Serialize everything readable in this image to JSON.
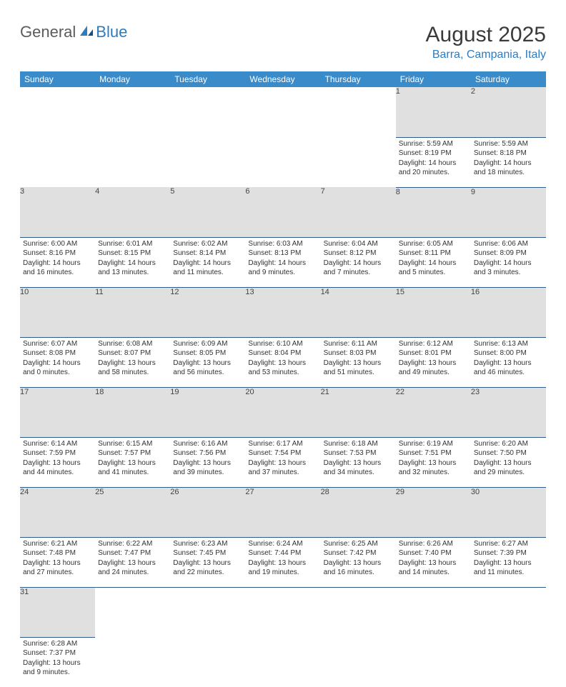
{
  "logo": {
    "general": "General",
    "blue": "Blue"
  },
  "title": "August 2025",
  "location": "Barra, Campania, Italy",
  "days": [
    "Sunday",
    "Monday",
    "Tuesday",
    "Wednesday",
    "Thursday",
    "Friday",
    "Saturday"
  ],
  "colors": {
    "header_bg": "#3a8bc9",
    "header_text": "#ffffff",
    "daynum_bg": "#e0e0e0",
    "accent": "#2f7bbf",
    "week_border": "#2f5b8a"
  },
  "weeks": [
    {
      "cells": [
        null,
        null,
        null,
        null,
        null,
        {
          "n": "1",
          "sr": "5:59 AM",
          "ss": "8:19 PM",
          "dl": "14 hours and 20 minutes."
        },
        {
          "n": "2",
          "sr": "5:59 AM",
          "ss": "8:18 PM",
          "dl": "14 hours and 18 minutes."
        }
      ]
    },
    {
      "cells": [
        {
          "n": "3",
          "sr": "6:00 AM",
          "ss": "8:16 PM",
          "dl": "14 hours and 16 minutes."
        },
        {
          "n": "4",
          "sr": "6:01 AM",
          "ss": "8:15 PM",
          "dl": "14 hours and 13 minutes."
        },
        {
          "n": "5",
          "sr": "6:02 AM",
          "ss": "8:14 PM",
          "dl": "14 hours and 11 minutes."
        },
        {
          "n": "6",
          "sr": "6:03 AM",
          "ss": "8:13 PM",
          "dl": "14 hours and 9 minutes."
        },
        {
          "n": "7",
          "sr": "6:04 AM",
          "ss": "8:12 PM",
          "dl": "14 hours and 7 minutes."
        },
        {
          "n": "8",
          "sr": "6:05 AM",
          "ss": "8:11 PM",
          "dl": "14 hours and 5 minutes."
        },
        {
          "n": "9",
          "sr": "6:06 AM",
          "ss": "8:09 PM",
          "dl": "14 hours and 3 minutes."
        }
      ]
    },
    {
      "cells": [
        {
          "n": "10",
          "sr": "6:07 AM",
          "ss": "8:08 PM",
          "dl": "14 hours and 0 minutes."
        },
        {
          "n": "11",
          "sr": "6:08 AM",
          "ss": "8:07 PM",
          "dl": "13 hours and 58 minutes."
        },
        {
          "n": "12",
          "sr": "6:09 AM",
          "ss": "8:05 PM",
          "dl": "13 hours and 56 minutes."
        },
        {
          "n": "13",
          "sr": "6:10 AM",
          "ss": "8:04 PM",
          "dl": "13 hours and 53 minutes."
        },
        {
          "n": "14",
          "sr": "6:11 AM",
          "ss": "8:03 PM",
          "dl": "13 hours and 51 minutes."
        },
        {
          "n": "15",
          "sr": "6:12 AM",
          "ss": "8:01 PM",
          "dl": "13 hours and 49 minutes."
        },
        {
          "n": "16",
          "sr": "6:13 AM",
          "ss": "8:00 PM",
          "dl": "13 hours and 46 minutes."
        }
      ]
    },
    {
      "cells": [
        {
          "n": "17",
          "sr": "6:14 AM",
          "ss": "7:59 PM",
          "dl": "13 hours and 44 minutes."
        },
        {
          "n": "18",
          "sr": "6:15 AM",
          "ss": "7:57 PM",
          "dl": "13 hours and 41 minutes."
        },
        {
          "n": "19",
          "sr": "6:16 AM",
          "ss": "7:56 PM",
          "dl": "13 hours and 39 minutes."
        },
        {
          "n": "20",
          "sr": "6:17 AM",
          "ss": "7:54 PM",
          "dl": "13 hours and 37 minutes."
        },
        {
          "n": "21",
          "sr": "6:18 AM",
          "ss": "7:53 PM",
          "dl": "13 hours and 34 minutes."
        },
        {
          "n": "22",
          "sr": "6:19 AM",
          "ss": "7:51 PM",
          "dl": "13 hours and 32 minutes."
        },
        {
          "n": "23",
          "sr": "6:20 AM",
          "ss": "7:50 PM",
          "dl": "13 hours and 29 minutes."
        }
      ]
    },
    {
      "cells": [
        {
          "n": "24",
          "sr": "6:21 AM",
          "ss": "7:48 PM",
          "dl": "13 hours and 27 minutes."
        },
        {
          "n": "25",
          "sr": "6:22 AM",
          "ss": "7:47 PM",
          "dl": "13 hours and 24 minutes."
        },
        {
          "n": "26",
          "sr": "6:23 AM",
          "ss": "7:45 PM",
          "dl": "13 hours and 22 minutes."
        },
        {
          "n": "27",
          "sr": "6:24 AM",
          "ss": "7:44 PM",
          "dl": "13 hours and 19 minutes."
        },
        {
          "n": "28",
          "sr": "6:25 AM",
          "ss": "7:42 PM",
          "dl": "13 hours and 16 minutes."
        },
        {
          "n": "29",
          "sr": "6:26 AM",
          "ss": "7:40 PM",
          "dl": "13 hours and 14 minutes."
        },
        {
          "n": "30",
          "sr": "6:27 AM",
          "ss": "7:39 PM",
          "dl": "13 hours and 11 minutes."
        }
      ]
    },
    {
      "cells": [
        {
          "n": "31",
          "sr": "6:28 AM",
          "ss": "7:37 PM",
          "dl": "13 hours and 9 minutes."
        },
        null,
        null,
        null,
        null,
        null,
        null
      ]
    }
  ],
  "labels": {
    "sunrise": "Sunrise:",
    "sunset": "Sunset:",
    "daylight": "Daylight:"
  }
}
